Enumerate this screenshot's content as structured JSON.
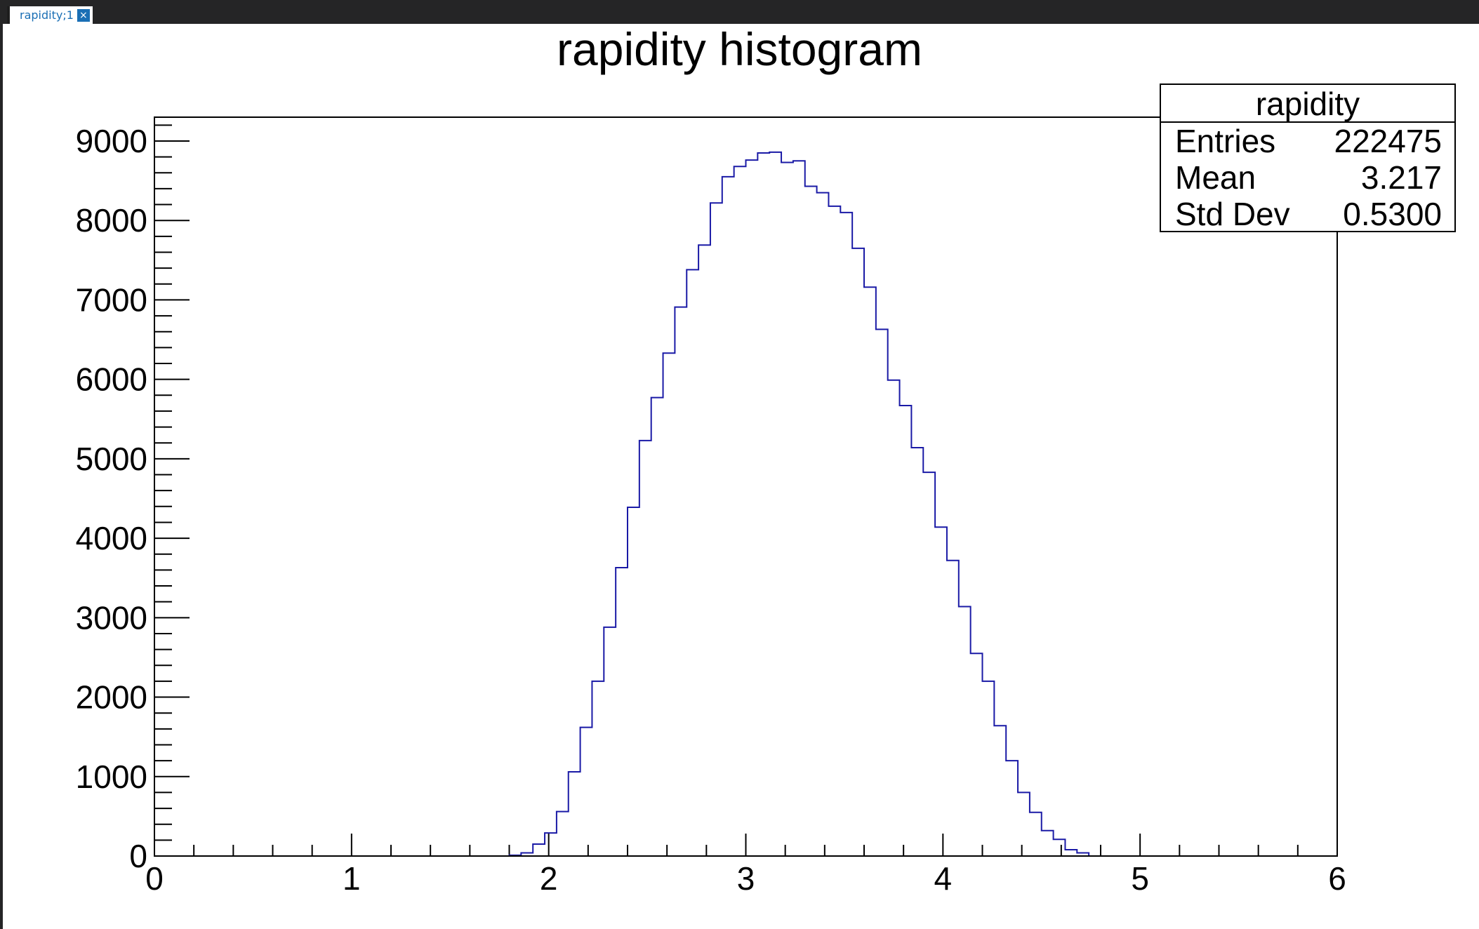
{
  "tab": {
    "label": "rapidity;1",
    "close_icon": "close-icon"
  },
  "title": "rapidity histogram",
  "stats_box": {
    "title": "rapidity",
    "rows": [
      {
        "name": "Entries",
        "value": "222475"
      },
      {
        "name": "Mean",
        "value": "3.217"
      },
      {
        "name": "Std Dev",
        "value": "0.5300"
      }
    ]
  },
  "colors": {
    "line": "#1a1aa6",
    "axis": "#000000",
    "topbar": "#252526",
    "tab_accent": "#1a6fb5"
  },
  "chart_data": {
    "type": "histogram",
    "title": "rapidity histogram",
    "xlabel": "",
    "ylabel": "",
    "xlim": [
      0,
      6
    ],
    "ylim": [
      0,
      9300
    ],
    "x_ticks": [
      0,
      1,
      2,
      3,
      4,
      5,
      6
    ],
    "y_ticks": [
      0,
      1000,
      2000,
      3000,
      4000,
      5000,
      6000,
      7000,
      8000,
      9000
    ],
    "grid": false,
    "bin_width": 0.06,
    "bin_edges_start": 1.8,
    "counts": [
      10,
      40,
      150,
      290,
      560,
      1060,
      1620,
      2200,
      2880,
      3630,
      4390,
      5230,
      5770,
      6330,
      6910,
      7380,
      7690,
      8220,
      8550,
      8680,
      8760,
      8850,
      8860,
      8730,
      8750,
      8430,
      8350,
      8180,
      8100,
      7650,
      7160,
      6630,
      5990,
      5670,
      5140,
      4830,
      4140,
      3720,
      3140,
      2550,
      2200,
      1640,
      1200,
      800,
      550,
      320,
      210,
      80,
      40,
      0
    ]
  }
}
